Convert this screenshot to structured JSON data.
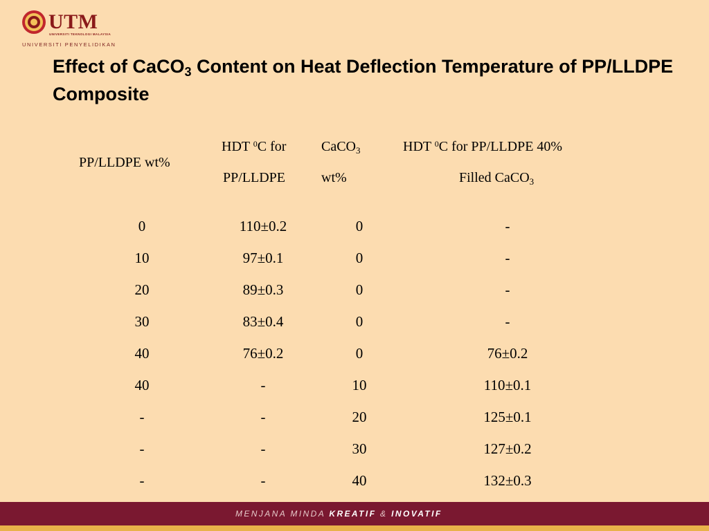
{
  "logo": {
    "wordmark": "UTM",
    "university_small": "UNIVERSITI TEKNOLOGI MALAYSIA",
    "tagline": "UNIVERSITI PENYELIDIKAN"
  },
  "title": {
    "part1": "Effect of CaCO",
    "sub": "3",
    "part2": " Content on Heat Deflection Temperature of PP/LLDPE Composite"
  },
  "table": {
    "headers": {
      "col1": "PP/LLDPE wt%",
      "col2_line1_a": "HDT ",
      "col2_sup": "0",
      "col2_line1_b": "C for",
      "col2_line2": "PP/LLDPE",
      "col3_line1": "CaCO",
      "col3_sub": "3",
      "col3_line2": "wt%",
      "col4_line1_a": "HDT ",
      "col4_sup": "0",
      "col4_line1_b": "C  for PP/LLDPE 40%",
      "col4_line2": "Filled CaCO",
      "col4_sub": "3"
    },
    "rows": [
      [
        "0",
        "110±0.2",
        "0",
        "-"
      ],
      [
        "10",
        "97±0.1",
        "0",
        "-"
      ],
      [
        "20",
        "89±0.3",
        "0",
        "-"
      ],
      [
        "30",
        "83±0.4",
        "0",
        "-"
      ],
      [
        "40",
        "76±0.2",
        "0",
        "76±0.2"
      ],
      [
        "40",
        "-",
        "10",
        "110±0.1"
      ],
      [
        "-",
        "-",
        "20",
        "125±0.1"
      ],
      [
        "-",
        "-",
        "30",
        "127±0.2"
      ],
      [
        "-",
        "-",
        "40",
        "132±0.3"
      ]
    ]
  },
  "footer": {
    "prefix": "MENJANA MINDA ",
    "word1": "KREATIF",
    "amp": " & ",
    "word2": "INOVATIF"
  },
  "colors": {
    "background": "#fcdcb0",
    "maroon": "#7a1830",
    "gold": "#e8b24a",
    "text": "#000000"
  }
}
